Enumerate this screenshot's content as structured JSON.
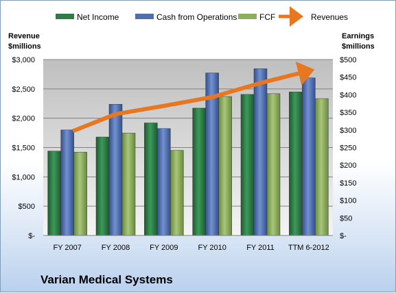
{
  "chart_data": {
    "type": "bar",
    "title": "Varian Medical Systems",
    "categories": [
      "FY 2007",
      "FY 2008",
      "FY 2009",
      "FY 2010",
      "FY 2011",
      "TTM 6-2012"
    ],
    "series": [
      {
        "name": "Net Income",
        "axis": "right",
        "color": "#2e7d46",
        "values": [
          240,
          280,
          320,
          362,
          401,
          408
        ]
      },
      {
        "name": "Cash from Operations",
        "axis": "right",
        "color": "#4f6db0",
        "values": [
          300,
          373,
          304,
          462,
          474,
          448
        ]
      },
      {
        "name": "FCF",
        "axis": "right",
        "color": "#8fae5a",
        "values": [
          237,
          291,
          242,
          395,
          403,
          389
        ]
      }
    ],
    "line_series": {
      "name": "Revenues",
      "axis": "left",
      "color": "#e87722",
      "values": [
        1780,
        2070,
        2210,
        2360,
        2600,
        2800
      ]
    },
    "left_axis": {
      "label_line1": "Revenue",
      "label_line2": "$millions",
      "range": [
        0,
        3000
      ],
      "ticks": [
        "$-",
        "$500",
        "$1,000",
        "$1,500",
        "$2,000",
        "$2,500",
        "$3,000"
      ]
    },
    "right_axis": {
      "label_line1": "Earnings",
      "label_line2": "$millions",
      "range": [
        0,
        500
      ],
      "ticks": [
        "$-",
        "$50",
        "$100",
        "$150",
        "$200",
        "$250",
        "$300",
        "$350",
        "$400",
        "$450",
        "$500"
      ]
    },
    "legend_position": "top",
    "grid": true
  }
}
